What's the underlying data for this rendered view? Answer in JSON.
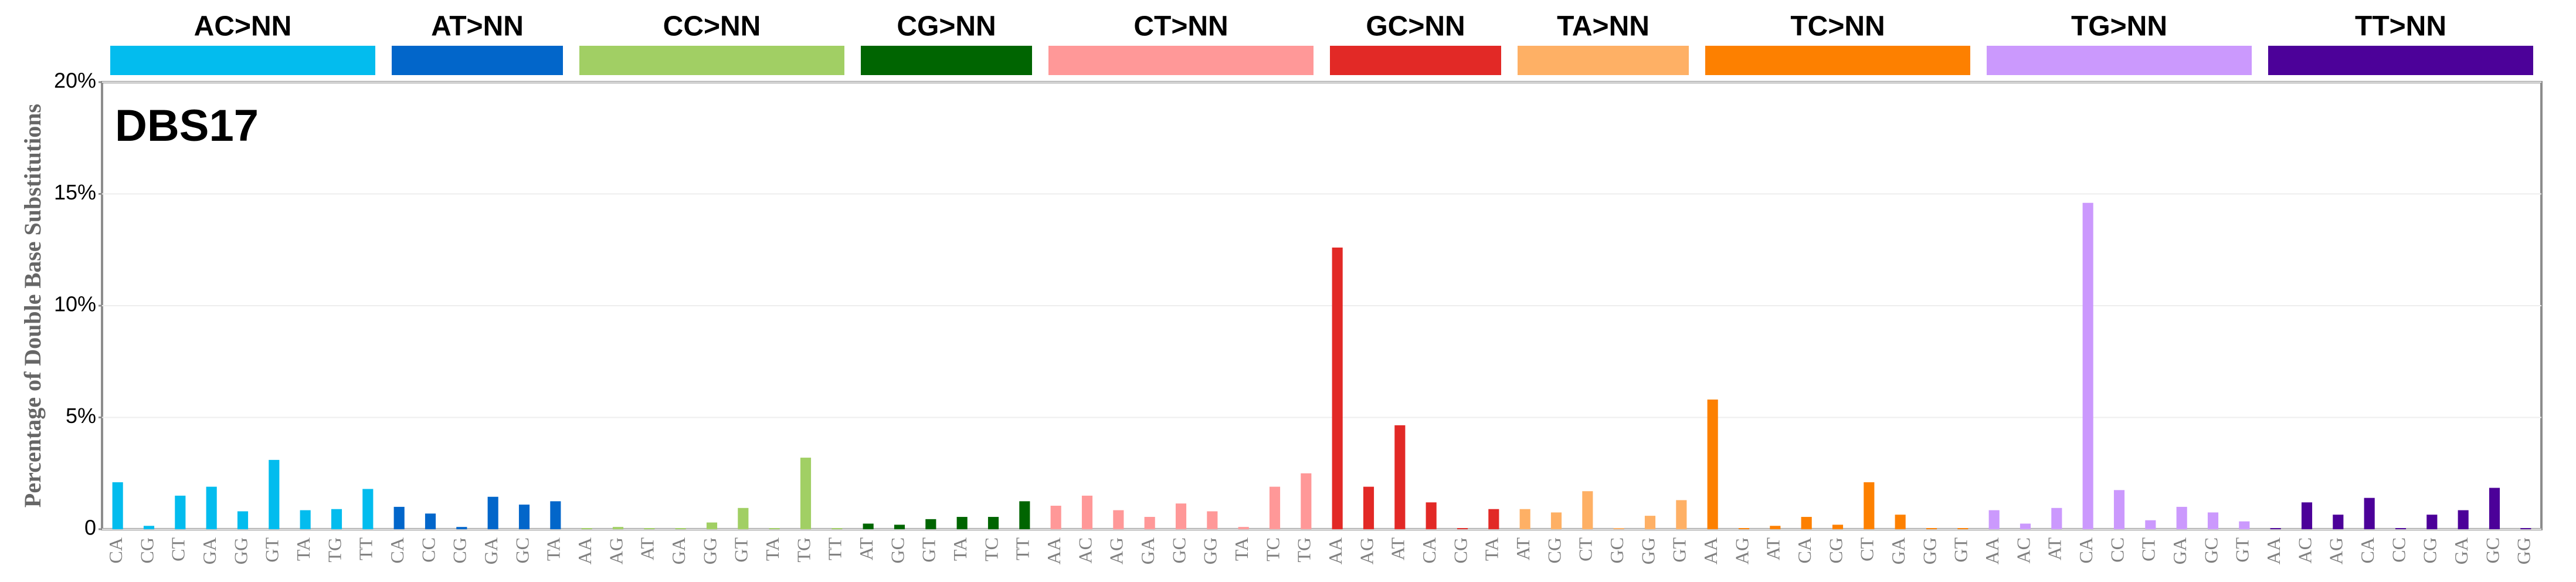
{
  "chart_data": {
    "type": "bar",
    "title": "DBS17",
    "y_label": "Percentage of Double Base Substitutions",
    "ylim": [
      0,
      20
    ],
    "yticks": [
      0,
      {
        "value": 5,
        "label": "5%"
      },
      {
        "value": 10,
        "label": "10%"
      },
      {
        "value": 15,
        "label": "15%"
      },
      {
        "value": 20,
        "label": "20%"
      }
    ],
    "grid": true,
    "series": [
      {
        "name": "AC>NN",
        "color": "#03bcee",
        "categories": [
          "CA",
          "CG",
          "CT",
          "GA",
          "GG",
          "GT",
          "TA",
          "TG",
          "TT"
        ],
        "values": [
          2.1,
          0.15,
          1.5,
          1.9,
          0.8,
          3.1,
          0.85,
          0.9,
          1.8
        ]
      },
      {
        "name": "AT>NN",
        "color": "#0266ca",
        "categories": [
          "CA",
          "CC",
          "CG",
          "GA",
          "GC",
          "TA"
        ],
        "values": [
          1.0,
          0.7,
          0.1,
          1.45,
          1.1,
          1.25
        ]
      },
      {
        "name": "CC>NN",
        "color": "#a1cf64",
        "categories": [
          "AA",
          "AG",
          "AT",
          "GA",
          "GG",
          "GT",
          "TA",
          "TG",
          "TT"
        ],
        "values": [
          0.05,
          0.1,
          0.05,
          0.05,
          0.3,
          0.95,
          0.05,
          3.2,
          0.05
        ]
      },
      {
        "name": "CG>NN",
        "color": "#006501",
        "categories": [
          "AT",
          "GC",
          "GT",
          "TA",
          "TC",
          "TT"
        ],
        "values": [
          0.25,
          0.2,
          0.45,
          0.55,
          0.55,
          1.25
        ]
      },
      {
        "name": "CT>NN",
        "color": "#ff9898",
        "categories": [
          "AA",
          "AC",
          "AG",
          "GA",
          "GC",
          "GG",
          "TA",
          "TC",
          "TG"
        ],
        "values": [
          1.05,
          1.5,
          0.85,
          0.55,
          1.15,
          0.8,
          0.1,
          1.9,
          2.5
        ]
      },
      {
        "name": "GC>NN",
        "color": "#e22926",
        "categories": [
          "AA",
          "AG",
          "AT",
          "CA",
          "CG",
          "TA"
        ],
        "values": [
          12.6,
          1.9,
          4.65,
          1.2,
          0.05,
          0.9
        ]
      },
      {
        "name": "TA>NN",
        "color": "#feb065",
        "categories": [
          "AT",
          "CG",
          "CT",
          "GC",
          "GG",
          "GT"
        ],
        "values": [
          0.9,
          0.75,
          1.7,
          0.05,
          0.6,
          1.3
        ]
      },
      {
        "name": "TC>NN",
        "color": "#fd8000",
        "categories": [
          "AA",
          "AG",
          "AT",
          "CA",
          "CG",
          "CT",
          "GA",
          "GG",
          "GT"
        ],
        "values": [
          5.8,
          0.05,
          0.15,
          0.55,
          0.2,
          2.1,
          0.65,
          0.05,
          0.05
        ]
      },
      {
        "name": "TG>NN",
        "color": "#cb99fd",
        "categories": [
          "AA",
          "AC",
          "AT",
          "CA",
          "CC",
          "CT",
          "GA",
          "GC",
          "GT"
        ],
        "values": [
          0.85,
          0.25,
          0.95,
          14.6,
          1.75,
          0.4,
          1.0,
          0.75,
          0.35
        ]
      },
      {
        "name": "TT>NN",
        "color": "#4c0199",
        "categories": [
          "AA",
          "AC",
          "AG",
          "CA",
          "CC",
          "CG",
          "GA",
          "GC",
          "GG"
        ],
        "values": [
          0.05,
          1.2,
          0.65,
          1.4,
          0.05,
          0.65,
          0.85,
          1.85,
          0.05
        ]
      }
    ]
  }
}
